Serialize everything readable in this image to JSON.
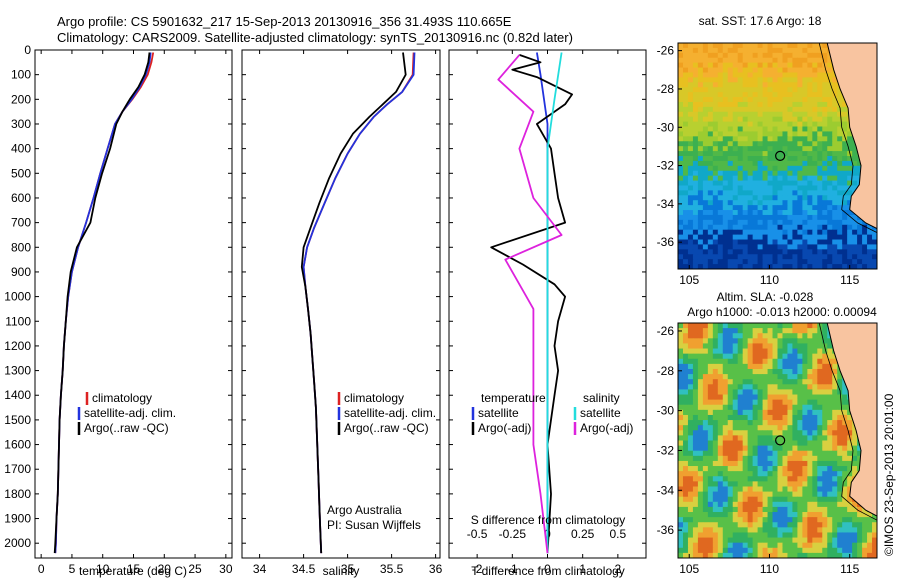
{
  "header": {
    "line1": "Argo profile: CS 5901632_217 15-Sep-2013 20130916_356 31.493S 110.665E",
    "line2": "Climatology: CARS2009. Satellite-adjusted climatology: synTS_20130916.nc (0.82d later)"
  },
  "legend": {
    "climatology": "climatology",
    "satellite_adj": "satellite-adj. clim.",
    "argo_raw": "Argo(..raw -QC)",
    "temperature": "temperature",
    "salinity": "salinity",
    "satellite": "satellite",
    "argo_adj": "Argo(-adj)"
  },
  "colors": {
    "climatology": "#dd2222",
    "satellite": "#2233dd",
    "argo": "#000000",
    "sal_satellite": "#22dddd",
    "sal_argo": "#dd22dd"
  },
  "credit": {
    "org": "Argo Australia",
    "pi": "PI: Susan Wijffels"
  },
  "timestamp": "©IMOS 23-Sep-2013 20:01:00",
  "map_top": {
    "title": "sat. SST: 17.6 Argo: 18",
    "x_ticks": [
      105,
      110,
      115
    ],
    "y_ticks": [
      -26,
      -28,
      -30,
      -32,
      -34,
      -36
    ],
    "float_lon": 110.665,
    "float_lat": -31.493
  },
  "map_bottom": {
    "title1": "Altim. SLA: -0.028",
    "title2": "Argo h1000: -0.013 h2000: 0.00094",
    "x_ticks": [
      105,
      110,
      115
    ],
    "y_ticks": [
      -26,
      -28,
      -30,
      -32,
      -34,
      -36
    ],
    "float_lon": 110.665,
    "float_lat": -31.493
  },
  "chart_data": [
    {
      "type": "line",
      "xlabel": "temperature (deg C)",
      "xlim": [
        -1,
        31
      ],
      "ylim": [
        2060,
        0
      ],
      "x_ticks": [
        0,
        5,
        10,
        15,
        20,
        25,
        30
      ],
      "y_ticks": [
        0,
        100,
        200,
        300,
        400,
        500,
        600,
        700,
        800,
        900,
        1000,
        1100,
        1200,
        1300,
        1400,
        1500,
        1600,
        1700,
        1800,
        1900,
        2000
      ],
      "series": [
        {
          "name": "climatology",
          "points": [
            [
              18.2,
              10
            ],
            [
              17.9,
              50
            ],
            [
              17.3,
              100
            ],
            [
              16.2,
              150
            ],
            [
              14.8,
              200
            ],
            [
              13.2,
              250
            ],
            [
              12.0,
              300
            ],
            [
              10.8,
              400
            ],
            [
              9.6,
              500
            ],
            [
              8.5,
              600
            ],
            [
              7.3,
              700
            ],
            [
              6.0,
              800
            ],
            [
              5.0,
              900
            ],
            [
              4.4,
              1000
            ],
            [
              4.0,
              1100
            ],
            [
              3.7,
              1200
            ],
            [
              3.5,
              1300
            ],
            [
              3.2,
              1400
            ],
            [
              3.0,
              1500
            ],
            [
              2.9,
              1600
            ],
            [
              2.8,
              1700
            ],
            [
              2.7,
              1800
            ],
            [
              2.5,
              1900
            ],
            [
              2.4,
              2000
            ],
            [
              2.3,
              2040
            ]
          ]
        },
        {
          "name": "satellite-adj. clim.",
          "points": [
            [
              17.8,
              10
            ],
            [
              17.6,
              50
            ],
            [
              17.0,
              100
            ],
            [
              16.0,
              150
            ],
            [
              14.7,
              200
            ],
            [
              13.2,
              250
            ],
            [
              12.0,
              300
            ],
            [
              10.8,
              400
            ],
            [
              9.6,
              500
            ],
            [
              8.5,
              600
            ],
            [
              7.3,
              700
            ],
            [
              6.0,
              800
            ],
            [
              5.0,
              900
            ],
            [
              4.4,
              1000
            ],
            [
              4.0,
              1100
            ],
            [
              3.7,
              1200
            ],
            [
              3.5,
              1300
            ],
            [
              3.2,
              1400
            ],
            [
              3.0,
              1500
            ],
            [
              2.9,
              1600
            ],
            [
              2.8,
              1700
            ],
            [
              2.7,
              1800
            ],
            [
              2.5,
              1900
            ],
            [
              2.4,
              2000
            ],
            [
              2.3,
              2040
            ]
          ]
        },
        {
          "name": "Argo(..raw -QC)",
          "points": [
            [
              17.6,
              10
            ],
            [
              17.4,
              50
            ],
            [
              16.8,
              100
            ],
            [
              15.8,
              150
            ],
            [
              14.4,
              200
            ],
            [
              13.2,
              250
            ],
            [
              12.2,
              300
            ],
            [
              11.2,
              400
            ],
            [
              9.9,
              500
            ],
            [
              8.8,
              600
            ],
            [
              8.0,
              700
            ],
            [
              5.8,
              800
            ],
            [
              4.8,
              900
            ],
            [
              4.3,
              1000
            ],
            [
              4.0,
              1100
            ],
            [
              3.7,
              1200
            ],
            [
              3.5,
              1300
            ],
            [
              3.2,
              1400
            ],
            [
              3.0,
              1500
            ],
            [
              2.9,
              1600
            ],
            [
              2.8,
              1700
            ],
            [
              2.7,
              1800
            ],
            [
              2.5,
              1900
            ],
            [
              2.3,
              2000
            ],
            [
              2.2,
              2040
            ]
          ]
        }
      ]
    },
    {
      "type": "line",
      "xlabel": "salinity",
      "xlim": [
        33.8,
        36.05
      ],
      "ylim": [
        2060,
        0
      ],
      "x_ticks": [
        34,
        34.5,
        35,
        35.5,
        36
      ],
      "series": [
        {
          "name": "climatology",
          "points": [
            [
              35.75,
              10
            ],
            [
              35.74,
              100
            ],
            [
              35.62,
              170
            ],
            [
              35.45,
              220
            ],
            [
              35.3,
              270
            ],
            [
              35.14,
              340
            ],
            [
              35.0,
              420
            ],
            [
              34.86,
              520
            ],
            [
              34.74,
              620
            ],
            [
              34.62,
              720
            ],
            [
              34.54,
              800
            ],
            [
              34.5,
              880
            ],
            [
              34.52,
              960
            ],
            [
              34.55,
              1050
            ],
            [
              34.58,
              1150
            ],
            [
              34.6,
              1250
            ],
            [
              34.62,
              1350
            ],
            [
              34.64,
              1450
            ],
            [
              34.65,
              1550
            ],
            [
              34.66,
              1650
            ],
            [
              34.67,
              1750
            ],
            [
              34.68,
              1850
            ],
            [
              34.69,
              1950
            ],
            [
              34.7,
              2040
            ]
          ]
        },
        {
          "name": "satellite-adj. clim.",
          "points": [
            [
              35.76,
              10
            ],
            [
              35.75,
              100
            ],
            [
              35.62,
              170
            ],
            [
              35.45,
              220
            ],
            [
              35.3,
              270
            ],
            [
              35.14,
              340
            ],
            [
              35.0,
              420
            ],
            [
              34.86,
              520
            ],
            [
              34.74,
              620
            ],
            [
              34.62,
              720
            ],
            [
              34.54,
              800
            ],
            [
              34.5,
              880
            ],
            [
              34.52,
              960
            ],
            [
              34.55,
              1050
            ],
            [
              34.58,
              1150
            ],
            [
              34.6,
              1250
            ],
            [
              34.62,
              1350
            ],
            [
              34.64,
              1450
            ],
            [
              34.65,
              1550
            ],
            [
              34.66,
              1650
            ],
            [
              34.67,
              1750
            ],
            [
              34.68,
              1850
            ],
            [
              34.69,
              1950
            ],
            [
              34.7,
              2040
            ]
          ]
        },
        {
          "name": "Argo(..raw -QC)",
          "points": [
            [
              35.63,
              10
            ],
            [
              35.66,
              100
            ],
            [
              35.55,
              170
            ],
            [
              35.4,
              220
            ],
            [
              35.25,
              270
            ],
            [
              35.06,
              340
            ],
            [
              34.92,
              420
            ],
            [
              34.79,
              520
            ],
            [
              34.68,
              620
            ],
            [
              34.58,
              720
            ],
            [
              34.5,
              800
            ],
            [
              34.48,
              880
            ],
            [
              34.52,
              960
            ],
            [
              34.55,
              1050
            ],
            [
              34.58,
              1150
            ],
            [
              34.6,
              1250
            ],
            [
              34.62,
              1350
            ],
            [
              34.64,
              1450
            ],
            [
              34.65,
              1550
            ],
            [
              34.66,
              1650
            ],
            [
              34.67,
              1750
            ],
            [
              34.68,
              1850
            ],
            [
              34.69,
              1950
            ],
            [
              34.7,
              2040
            ]
          ]
        }
      ]
    },
    {
      "type": "line",
      "xlabel": "T difference from climatology",
      "xlabel2": "S difference from climatology",
      "xlim": [
        -2.8,
        2.8
      ],
      "ylim": [
        2060,
        0
      ],
      "x_ticks": [
        -2,
        -1,
        0,
        1,
        2
      ],
      "x2_ticks": [
        -0.5,
        -0.25,
        0,
        0.25,
        0.5
      ],
      "x2_tick_labels": [
        "-0.5",
        "-0.25",
        "0",
        "0.25",
        "0.5"
      ],
      "series": [
        {
          "name": "temperature satellite",
          "points": [
            [
              -0.3,
              10
            ],
            [
              -0.2,
              100
            ],
            [
              -0.1,
              200
            ],
            [
              0,
              300
            ],
            [
              0,
              500
            ],
            [
              0,
              800
            ],
            [
              0,
              1200
            ],
            [
              0,
              1600
            ],
            [
              0,
              2040
            ]
          ]
        },
        {
          "name": "temperature Argo(-adj)",
          "points": [
            [
              -0.8,
              20
            ],
            [
              -0.2,
              50
            ],
            [
              -1.0,
              80
            ],
            [
              -0.3,
              110
            ],
            [
              0.7,
              180
            ],
            [
              0.5,
              220
            ],
            [
              -0.3,
              300
            ],
            [
              0.1,
              400
            ],
            [
              0.2,
              500
            ],
            [
              0.3,
              600
            ],
            [
              0.5,
              700
            ],
            [
              -1.6,
              800
            ],
            [
              -0.7,
              870
            ],
            [
              0.2,
              950
            ],
            [
              0.5,
              1000
            ],
            [
              0.3,
              1100
            ],
            [
              0.2,
              1200
            ],
            [
              0.3,
              1300
            ],
            [
              0.2,
              1400
            ],
            [
              0.1,
              1500
            ],
            [
              0,
              1600
            ],
            [
              0.1,
              1800
            ],
            [
              0,
              2040
            ]
          ]
        },
        {
          "name": "salinity satellite",
          "points": [
            [
              0.1,
              10
            ],
            [
              0.05,
              200
            ],
            [
              0,
              400
            ],
            [
              0,
              800
            ],
            [
              0,
              1200
            ],
            [
              0,
              1600
            ],
            [
              0,
              2040
            ]
          ]
        },
        {
          "name": "salinity Argo(-adj)",
          "points": [
            [
              -0.2,
              20
            ],
            [
              -0.35,
              120
            ],
            [
              -0.1,
              250
            ],
            [
              -0.2,
              400
            ],
            [
              -0.1,
              600
            ],
            [
              0.1,
              750
            ],
            [
              -0.3,
              850
            ],
            [
              -0.2,
              950
            ],
            [
              -0.1,
              1050
            ],
            [
              -0.1,
              1200
            ],
            [
              -0.1,
              1400
            ],
            [
              -0.1,
              1600
            ],
            [
              -0.05,
              1800
            ],
            [
              0,
              2040
            ]
          ]
        }
      ]
    }
  ]
}
